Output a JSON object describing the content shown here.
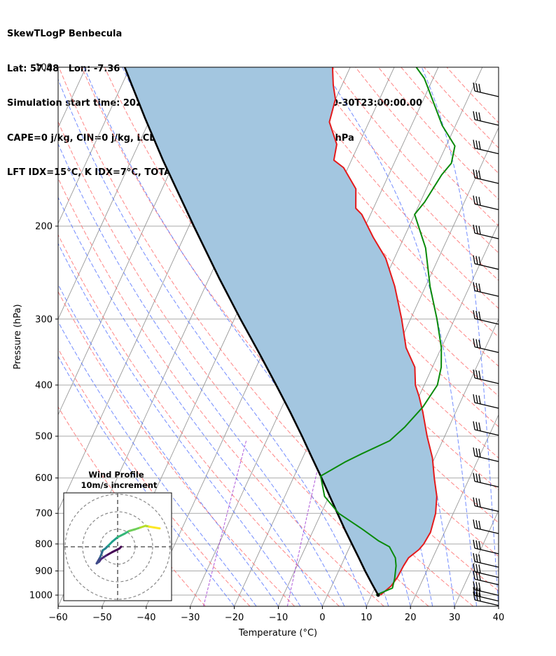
{
  "header": {
    "line1": "SkewTLogP Benbecula",
    "line2": "Lat: 57.48   Lon: -7.36",
    "line3": "Simulation start time: 2024-10-29_00:00:00, Valid time: 2024-10-30T23:00:00.00",
    "line4": "CAPE=0 j/kg, CIN=0 j/kg, LCL=1001 hPa, LFC=nan hPa, EQ=nan hPa",
    "line5": "LFT IDX=15°C, K IDX=7°C, TOTAL TOTS=36°C, SHWTR_IDX=9°C"
  },
  "colors": {
    "temperature": "#e41a1c",
    "dewpoint": "#0a8a0a",
    "parcel": "#000000",
    "cape_fill": "#a3c6e0",
    "dry_adiabat": "#ff6666",
    "moist_adiabat": "#4466ff",
    "mixing_ratio": "#9b30d0",
    "isotherm": "#999999",
    "isobar": "#aaaaaa"
  },
  "inset": {
    "title": "Wind Profile",
    "subtitle": "10m/s increment"
  },
  "chart_data": {
    "type": "line",
    "title": "SkewTLogP Benbecula",
    "xlabel": "Temperature (°C)",
    "ylabel": "Pressure (hPa)",
    "xlim": [
      -60,
      40
    ],
    "ylim": [
      1050,
      100
    ],
    "x_ticks": [
      -60,
      -50,
      -40,
      -30,
      -20,
      -10,
      0,
      10,
      20,
      30,
      40
    ],
    "x_tick_labels": [
      "−60",
      "−50",
      "−40",
      "−30",
      "−20",
      "−10",
      "0",
      "10",
      "20",
      "30",
      "40"
    ],
    "y_ticks": [
      1000,
      900,
      800,
      700,
      600,
      500,
      400,
      300,
      200,
      100
    ],
    "y_tick_labels": [
      "1000",
      "900",
      "800",
      "700",
      "600",
      "500",
      "400",
      "300",
      "200",
      "100"
    ],
    "y_scale": "log",
    "grid": true,
    "series": [
      {
        "key": "temperature",
        "points": [
          [
            1000,
            12
          ],
          [
            960,
            13.5
          ],
          [
            925,
            14
          ],
          [
            880,
            14.2
          ],
          [
            850,
            14.5
          ],
          [
            820,
            16
          ],
          [
            800,
            16.5
          ],
          [
            760,
            16.8
          ],
          [
            700,
            16
          ],
          [
            650,
            14.5
          ],
          [
            600,
            12
          ],
          [
            550,
            9.5
          ],
          [
            500,
            6
          ],
          [
            450,
            2.5
          ],
          [
            420,
            0
          ],
          [
            400,
            -2
          ],
          [
            370,
            -4
          ],
          [
            340,
            -8
          ],
          [
            300,
            -12
          ],
          [
            260,
            -17
          ],
          [
            230,
            -22
          ],
          [
            210,
            -27
          ],
          [
            190,
            -32
          ],
          [
            185,
            -34
          ],
          [
            170,
            -36
          ],
          [
            155,
            -41
          ],
          [
            150,
            -44
          ],
          [
            140,
            -45
          ],
          [
            127,
            -49
          ],
          [
            115,
            -50
          ],
          [
            108,
            -52
          ],
          [
            100,
            -54
          ]
        ]
      },
      {
        "key": "dewpoint",
        "points": [
          [
            1000,
            11
          ],
          [
            990,
            12
          ],
          [
            970,
            14
          ],
          [
            930,
            13.5
          ],
          [
            880,
            12.5
          ],
          [
            850,
            11.5
          ],
          [
            810,
            9
          ],
          [
            790,
            6
          ],
          [
            750,
            1
          ],
          [
            700,
            -6
          ],
          [
            650,
            -11
          ],
          [
            595,
            -14
          ],
          [
            560,
            -10
          ],
          [
            540,
            -7
          ],
          [
            510,
            -2
          ],
          [
            480,
            0
          ],
          [
            440,
            2
          ],
          [
            400,
            3
          ],
          [
            370,
            2
          ],
          [
            340,
            0
          ],
          [
            300,
            -4
          ],
          [
            260,
            -9
          ],
          [
            220,
            -14
          ],
          [
            190,
            -20
          ],
          [
            180,
            -19
          ],
          [
            160,
            -18
          ],
          [
            152,
            -17
          ],
          [
            141,
            -18
          ],
          [
            129,
            -23
          ],
          [
            115,
            -28
          ],
          [
            105,
            -32
          ],
          [
            100,
            -35
          ]
        ]
      },
      {
        "key": "parcel",
        "points": [
          [
            1000,
            11.5
          ],
          [
            950,
            8.8
          ],
          [
            900,
            6.0
          ],
          [
            850,
            3.2
          ],
          [
            800,
            0.2
          ],
          [
            750,
            -3.0
          ],
          [
            700,
            -6.3
          ],
          [
            650,
            -9.8
          ],
          [
            600,
            -13.6
          ],
          [
            550,
            -17.8
          ],
          [
            500,
            -22.4
          ],
          [
            450,
            -27.6
          ],
          [
            400,
            -33.6
          ],
          [
            350,
            -40.5
          ],
          [
            300,
            -48.6
          ],
          [
            250,
            -57.9
          ],
          [
            200,
            -68.9
          ],
          [
            150,
            -82.8
          ],
          [
            125,
            -91.2
          ],
          [
            100,
            -101.2
          ]
        ]
      }
    ],
    "wind_barbs": {
      "pressures": [
        1040,
        1020,
        995,
        950,
        920,
        880,
        830,
        760,
        690,
        620,
        555,
        495,
        440,
        395,
        345,
        305,
        270,
        240,
        210,
        185,
        165,
        145,
        128,
        113
      ]
    },
    "hodograph": {
      "rings": [
        1,
        2,
        3
      ],
      "path": [
        [
          0.0,
          1.8
        ],
        [
          -0.1,
          1.9
        ],
        [
          -0.3,
          2.3
        ],
        [
          -0.5,
          2.65
        ],
        [
          -0.7,
          2.95
        ],
        [
          -0.85,
          3.05
        ],
        [
          -0.95,
          3.2
        ],
        [
          -0.6,
          3.0
        ],
        [
          -0.35,
          2.9
        ],
        [
          -0.2,
          2.85
        ],
        [
          -0.1,
          2.7
        ],
        [
          0.05,
          2.55
        ],
        [
          0.3,
          2.3
        ],
        [
          0.55,
          2.0
        ],
        [
          0.75,
          1.6
        ],
        [
          0.9,
          1.35
        ],
        [
          1.0,
          1.0
        ],
        [
          1.1,
          0.7
        ],
        [
          1.2,
          0.4
        ],
        [
          1.15,
          0.2
        ],
        [
          1.1,
          -0.1
        ],
        [
          1.05,
          -0.4
        ]
      ]
    }
  }
}
